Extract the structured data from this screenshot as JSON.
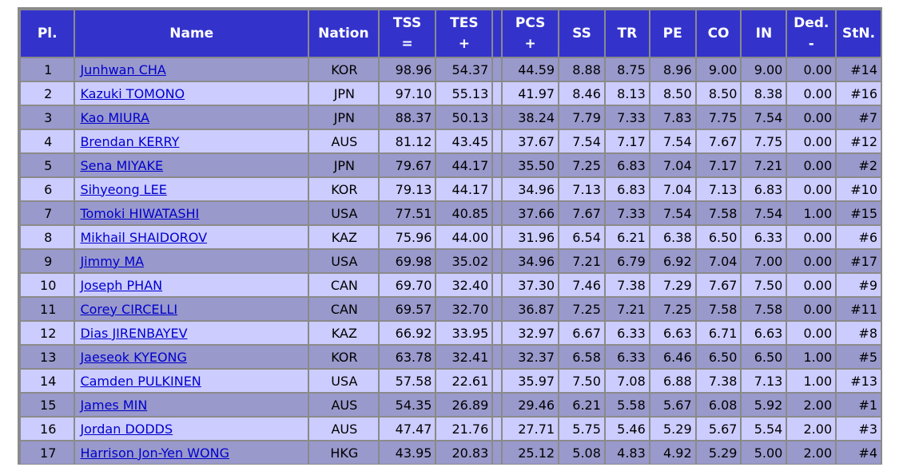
{
  "header": {
    "pl": "Pl.",
    "name": "Name",
    "nation": "Nation",
    "tss": "TSS",
    "tss_sym": "=",
    "tes": "TES",
    "tes_sym": "+",
    "pcs": "PCS",
    "pcs_sym": "+",
    "ss": "SS",
    "tr": "TR",
    "pe": "PE",
    "co": "CO",
    "in": "IN",
    "ded": "Ded.",
    "ded_sym": "-",
    "stn": "StN."
  },
  "rows": [
    {
      "pl": "1",
      "name": "Junhwan CHA",
      "nation": "KOR",
      "tss": "98.96",
      "tes": "54.37",
      "pcs": "44.59",
      "ss": "8.88",
      "tr": "8.75",
      "pe": "8.96",
      "co": "9.00",
      "in": "9.00",
      "ded": "0.00",
      "stn": "#14"
    },
    {
      "pl": "2",
      "name": "Kazuki TOMONO",
      "nation": "JPN",
      "tss": "97.10",
      "tes": "55.13",
      "pcs": "41.97",
      "ss": "8.46",
      "tr": "8.13",
      "pe": "8.50",
      "co": "8.50",
      "in": "8.38",
      "ded": "0.00",
      "stn": "#16"
    },
    {
      "pl": "3",
      "name": "Kao MIURA",
      "nation": "JPN",
      "tss": "88.37",
      "tes": "50.13",
      "pcs": "38.24",
      "ss": "7.79",
      "tr": "7.33",
      "pe": "7.83",
      "co": "7.75",
      "in": "7.54",
      "ded": "0.00",
      "stn": "#7"
    },
    {
      "pl": "4",
      "name": "Brendan KERRY",
      "nation": "AUS",
      "tss": "81.12",
      "tes": "43.45",
      "pcs": "37.67",
      "ss": "7.54",
      "tr": "7.17",
      "pe": "7.54",
      "co": "7.67",
      "in": "7.75",
      "ded": "0.00",
      "stn": "#12"
    },
    {
      "pl": "5",
      "name": "Sena MIYAKE",
      "nation": "JPN",
      "tss": "79.67",
      "tes": "44.17",
      "pcs": "35.50",
      "ss": "7.25",
      "tr": "6.83",
      "pe": "7.04",
      "co": "7.17",
      "in": "7.21",
      "ded": "0.00",
      "stn": "#2"
    },
    {
      "pl": "6",
      "name": "Sihyeong LEE",
      "nation": "KOR",
      "tss": "79.13",
      "tes": "44.17",
      "pcs": "34.96",
      "ss": "7.13",
      "tr": "6.83",
      "pe": "7.04",
      "co": "7.13",
      "in": "6.83",
      "ded": "0.00",
      "stn": "#10"
    },
    {
      "pl": "7",
      "name": "Tomoki HIWATASHI",
      "nation": "USA",
      "tss": "77.51",
      "tes": "40.85",
      "pcs": "37.66",
      "ss": "7.67",
      "tr": "7.33",
      "pe": "7.54",
      "co": "7.58",
      "in": "7.54",
      "ded": "1.00",
      "stn": "#15"
    },
    {
      "pl": "8",
      "name": "Mikhail SHAIDOROV",
      "nation": "KAZ",
      "tss": "75.96",
      "tes": "44.00",
      "pcs": "31.96",
      "ss": "6.54",
      "tr": "6.21",
      "pe": "6.38",
      "co": "6.50",
      "in": "6.33",
      "ded": "0.00",
      "stn": "#6"
    },
    {
      "pl": "9",
      "name": "Jimmy MA",
      "nation": "USA",
      "tss": "69.98",
      "tes": "35.02",
      "pcs": "34.96",
      "ss": "7.21",
      "tr": "6.79",
      "pe": "6.92",
      "co": "7.04",
      "in": "7.00",
      "ded": "0.00",
      "stn": "#17"
    },
    {
      "pl": "10",
      "name": "Joseph PHAN",
      "nation": "CAN",
      "tss": "69.70",
      "tes": "32.40",
      "pcs": "37.30",
      "ss": "7.46",
      "tr": "7.38",
      "pe": "7.29",
      "co": "7.67",
      "in": "7.50",
      "ded": "0.00",
      "stn": "#9"
    },
    {
      "pl": "11",
      "name": "Corey CIRCELLI",
      "nation": "CAN",
      "tss": "69.57",
      "tes": "32.70",
      "pcs": "36.87",
      "ss": "7.25",
      "tr": "7.21",
      "pe": "7.25",
      "co": "7.58",
      "in": "7.58",
      "ded": "0.00",
      "stn": "#11"
    },
    {
      "pl": "12",
      "name": "Dias JIRENBAYEV",
      "nation": "KAZ",
      "tss": "66.92",
      "tes": "33.95",
      "pcs": "32.97",
      "ss": "6.67",
      "tr": "6.33",
      "pe": "6.63",
      "co": "6.71",
      "in": "6.63",
      "ded": "0.00",
      "stn": "#8"
    },
    {
      "pl": "13",
      "name": "Jaeseok KYEONG",
      "nation": "KOR",
      "tss": "63.78",
      "tes": "32.41",
      "pcs": "32.37",
      "ss": "6.58",
      "tr": "6.33",
      "pe": "6.46",
      "co": "6.50",
      "in": "6.50",
      "ded": "1.00",
      "stn": "#5"
    },
    {
      "pl": "14",
      "name": "Camden PULKINEN",
      "nation": "USA",
      "tss": "57.58",
      "tes": "22.61",
      "pcs": "35.97",
      "ss": "7.50",
      "tr": "7.08",
      "pe": "6.88",
      "co": "7.38",
      "in": "7.13",
      "ded": "1.00",
      "stn": "#13"
    },
    {
      "pl": "15",
      "name": "James MIN",
      "nation": "AUS",
      "tss": "54.35",
      "tes": "26.89",
      "pcs": "29.46",
      "ss": "6.21",
      "tr": "5.58",
      "pe": "5.67",
      "co": "6.08",
      "in": "5.92",
      "ded": "2.00",
      "stn": "#1"
    },
    {
      "pl": "16",
      "name": "Jordan DODDS",
      "nation": "AUS",
      "tss": "47.47",
      "tes": "21.76",
      "pcs": "27.71",
      "ss": "5.75",
      "tr": "5.46",
      "pe": "5.29",
      "co": "5.67",
      "in": "5.54",
      "ded": "2.00",
      "stn": "#3"
    },
    {
      "pl": "17",
      "name": "Harrison Jon-Yen WONG",
      "nation": "HKG",
      "tss": "43.95",
      "tes": "20.83",
      "pcs": "25.12",
      "ss": "5.08",
      "tr": "4.83",
      "pe": "4.92",
      "co": "5.29",
      "in": "5.00",
      "ded": "2.00",
      "stn": "#4"
    }
  ],
  "colors": {
    "header_bg": "#3333cc",
    "row_odd": "#9999cc",
    "row_even": "#ccccff",
    "link": "#0000cc",
    "frame": "#8a8a8a"
  }
}
